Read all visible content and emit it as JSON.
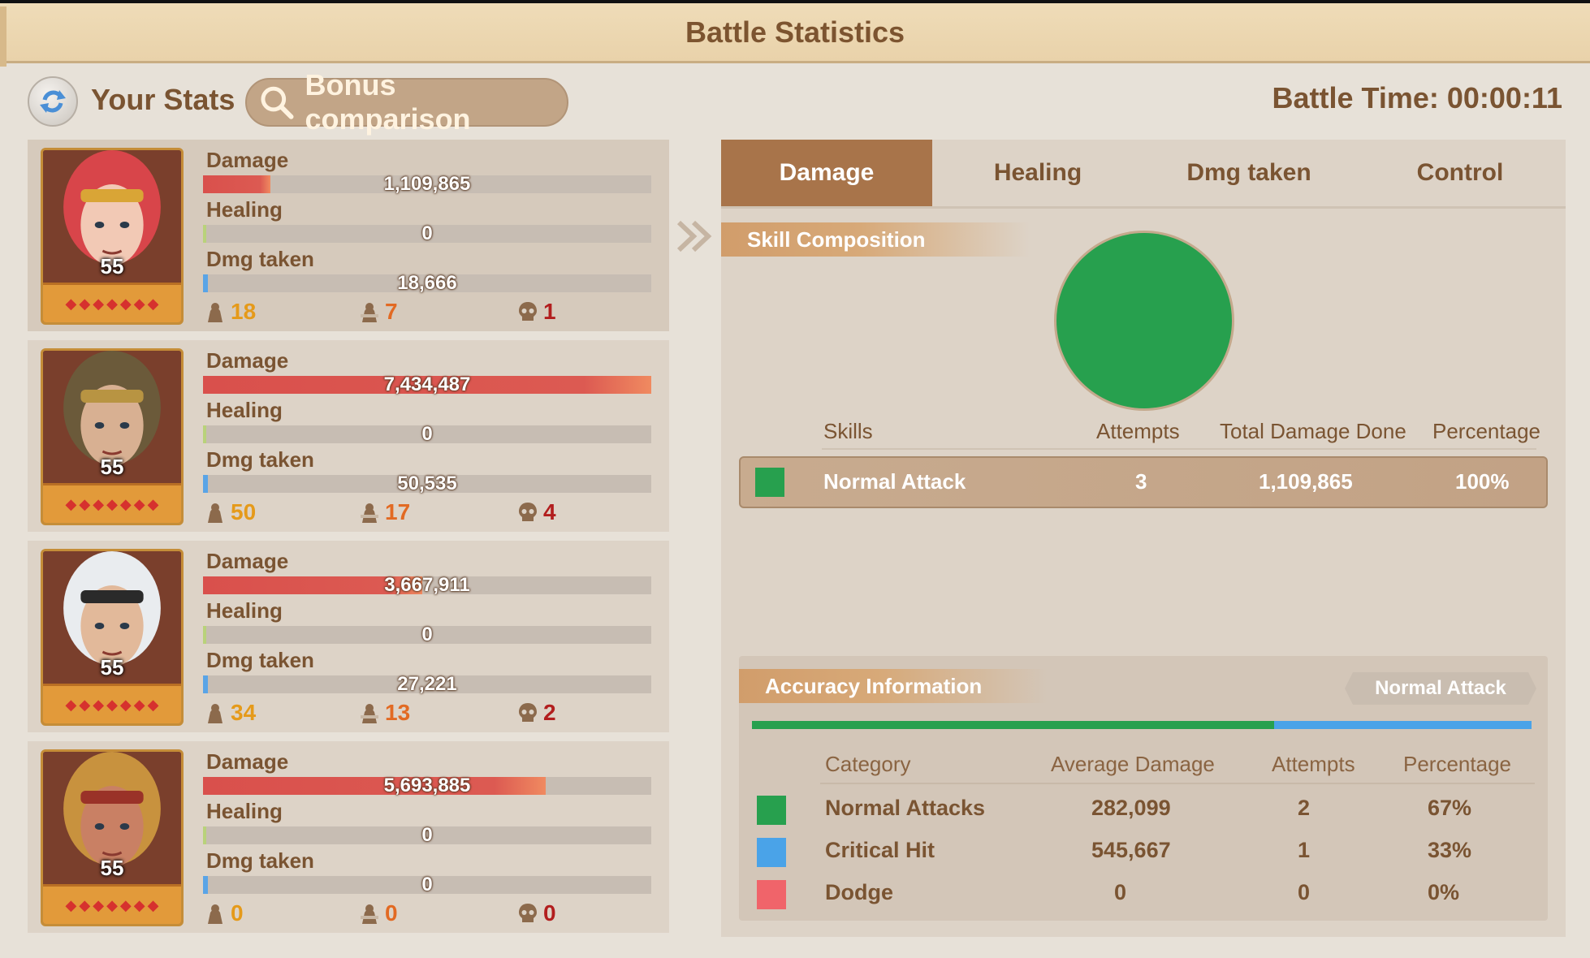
{
  "title": "Battle Statistics",
  "topbar": {
    "your_stats": "Your Stats",
    "bonus_label": "Bonus comparison",
    "battle_time": "Battle Time: 00:00:11"
  },
  "heroes": [
    {
      "level": "55",
      "damage_label": "Damage",
      "damage": "1,109,865",
      "damage_fraction": 0.15,
      "healing_label": "Healing",
      "healing": "0",
      "taken_label": "Dmg taken",
      "taken": "18,666",
      "taken_fraction": 0.01,
      "kills": "18",
      "severe": "7",
      "dead": "1"
    },
    {
      "level": "55",
      "damage_label": "Damage",
      "damage": "7,434,487",
      "damage_fraction": 1.0,
      "healing_label": "Healing",
      "healing": "0",
      "taken_label": "Dmg taken",
      "taken": "50,535",
      "taken_fraction": 0.01,
      "kills": "50",
      "severe": "17",
      "dead": "4"
    },
    {
      "level": "55",
      "damage_label": "Damage",
      "damage": "3,667,911",
      "damage_fraction": 0.49,
      "healing_label": "Healing",
      "healing": "0",
      "taken_label": "Dmg taken",
      "taken": "27,221",
      "taken_fraction": 0.01,
      "kills": "34",
      "severe": "13",
      "dead": "2"
    },
    {
      "level": "55",
      "damage_label": "Damage",
      "damage": "5,693,885",
      "damage_fraction": 0.765,
      "healing_label": "Healing",
      "healing": "0",
      "taken_label": "Dmg taken",
      "taken": "0",
      "taken_fraction": 0.01,
      "kills": "0",
      "severe": "0",
      "dead": "0"
    }
  ],
  "tabs": [
    "Damage",
    "Healing",
    "Dmg taken",
    "Control"
  ],
  "skill_composition": {
    "heading": "Skill Composition",
    "headers": {
      "skills": "Skills",
      "attempts": "Attempts",
      "total": "Total Damage Done",
      "percentage": "Percentage"
    },
    "rows": [
      {
        "color": "#27a04e",
        "skill": "Normal Attack",
        "attempts": "3",
        "total": "1,109,865",
        "percentage": "100%"
      }
    ]
  },
  "chart_data": {
    "type": "pie",
    "categories": [
      "Normal Attack"
    ],
    "values": [
      100
    ],
    "colors": [
      "#27a04e"
    ]
  },
  "accuracy": {
    "heading": "Accuracy Information",
    "tag": "Normal Attack",
    "headers": {
      "category": "Category",
      "avg": "Average Damage",
      "attempts": "Attempts",
      "percentage": "Percentage"
    },
    "rows": [
      {
        "color": "#27a04e",
        "category": "Normal Attacks",
        "avg": "282,099",
        "attempts": "2",
        "percentage": "67%"
      },
      {
        "color": "#4aa3e8",
        "category": "Critical Hit",
        "avg": "545,667",
        "attempts": "1",
        "percentage": "33%"
      },
      {
        "color": "#f0646a",
        "category": "Dodge",
        "avg": "0",
        "attempts": "0",
        "percentage": "0%"
      }
    ],
    "bar_fractions": [
      0.67,
      0.33,
      0.0
    ]
  },
  "colors": {
    "title_bg": "#ecd8b2",
    "active_tab": "#a8744a",
    "text_brown": "#7a5432",
    "damage_bar": "#d9504c",
    "kill_orange": "#e59a1a",
    "severe_orange": "#e26a23",
    "dead_red": "#b21e1e"
  }
}
